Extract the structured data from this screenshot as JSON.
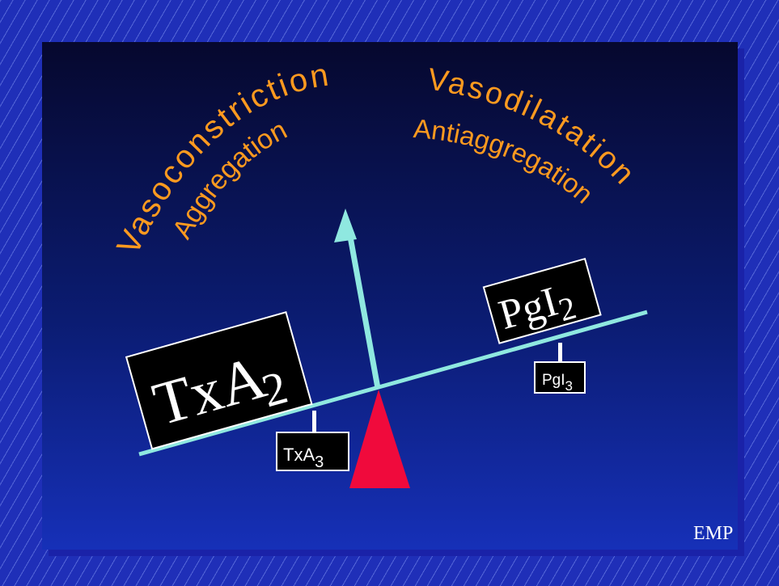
{
  "labels": {
    "left_top": "Vasoconstriction",
    "left_bottom": "Aggregation",
    "right_top": "Vasodilatation",
    "right_bottom": "Antiaggregation"
  },
  "boxes": {
    "txa2": {
      "base": "TxA",
      "sub": "2"
    },
    "pgi2": {
      "base": "PgI",
      "sub": "2"
    },
    "txa3": {
      "base": "TxA",
      "sub": "3"
    },
    "pgi3": {
      "base": "PgI",
      "sub": "3"
    }
  },
  "logo": "EMP",
  "colors": {
    "label_text": "#ff9a1f",
    "beam": "#8fe8e0",
    "fulcrum": "#f00a3c",
    "box_fill": "#000000",
    "box_border": "#ffffff"
  }
}
